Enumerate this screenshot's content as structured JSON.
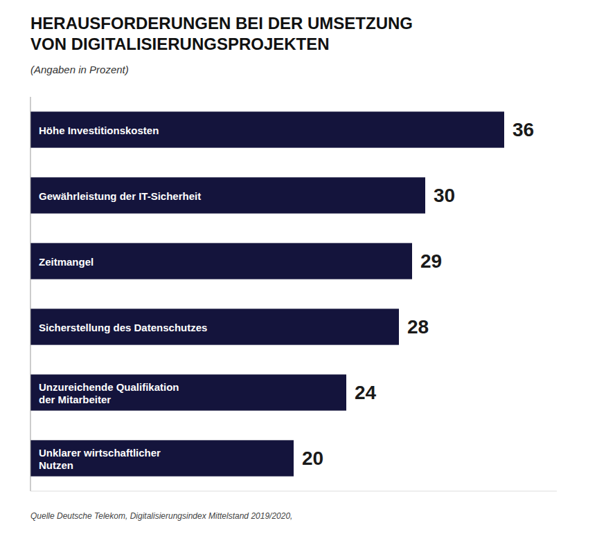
{
  "chart_data": {
    "type": "bar",
    "orientation": "horizontal",
    "title": "HERAUSFORDERUNGEN BEI DER UMSETZUNG\nVON DIGITALISIERUNGSPROJEKTEN",
    "subtitle": "(Angaben in Prozent)",
    "categories": [
      "Höhe Investitionskosten",
      "Gewährleistung der IT-Sicherheit",
      "Zeitmangel",
      "Sicherstellung des Datenschutzes",
      "Unzureichende Qualifikation\nder Mitarbeiter",
      "Unklarer wirtschaftlicher\nNutzen"
    ],
    "values": [
      36,
      30,
      29,
      28,
      24,
      20
    ],
    "color": "#14143c",
    "xlim": [
      0,
      40
    ],
    "tick_labels": false,
    "data_labels": true,
    "grid": false,
    "annotations": [
      "Quelle Deutsche Telekom, Digitalisierungsindex Mittelstand 2019/2020,"
    ]
  }
}
